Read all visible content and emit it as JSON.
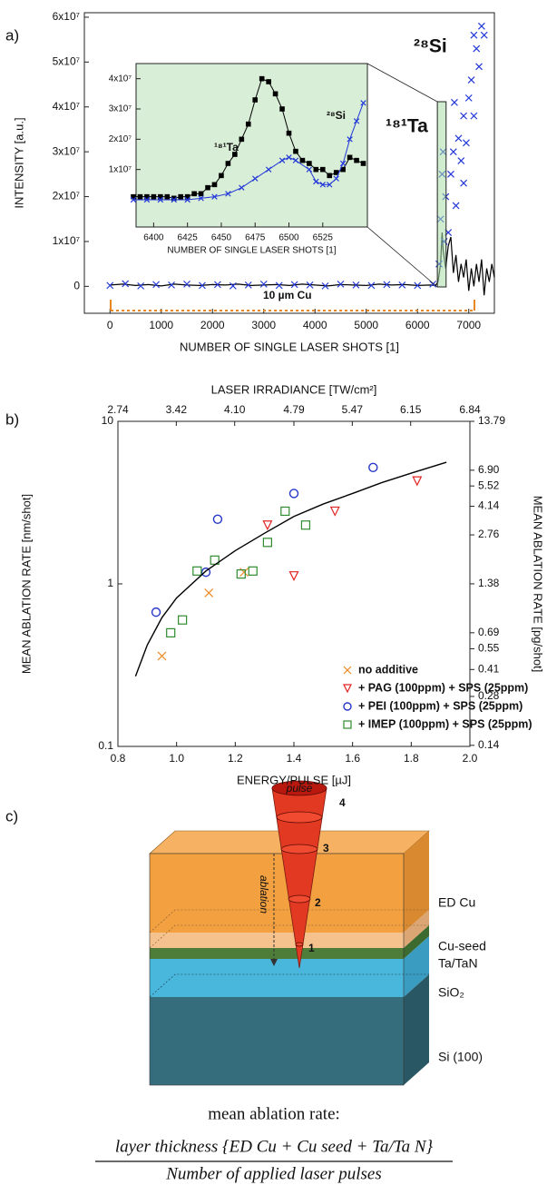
{
  "panel_labels": [
    "a)",
    "b)",
    "c)"
  ],
  "chart_data": [
    {
      "type": "line",
      "x_label": "NUMBER OF SINGLE LASER SHOTS [1]",
      "y_label": "INTENSITY [a.u.]",
      "xlim": [
        -500,
        7500
      ],
      "ylim": [
        -6000000,
        61000000
      ],
      "xticks": [
        0,
        1000,
        2000,
        3000,
        4000,
        5000,
        6000,
        7000
      ],
      "yticks": [
        0,
        {
          "value": 10000000,
          "label": "1x10⁷"
        },
        {
          "value": 20000000,
          "label": "2x10⁷"
        },
        {
          "value": 30000000,
          "label": "3x10⁷"
        },
        {
          "value": 40000000,
          "label": "4x10⁷"
        },
        {
          "value": 50000000,
          "label": "5x10⁷"
        },
        {
          "value": 60000000,
          "label": "6x10⁷"
        }
      ],
      "annotations": [
        "²⁸Si",
        "¹⁸¹Ta",
        "10 µm Cu"
      ],
      "series": [
        {
          "color": "#000000",
          "line": true,
          "marker": "none",
          "x": [
            0,
            250,
            500,
            750,
            1000,
            1250,
            1500,
            1750,
            2000,
            2250,
            2500,
            2750,
            3000,
            3250,
            3500,
            3750,
            4000,
            4250,
            4500,
            4750,
            5000,
            5250,
            5500,
            5750,
            6000,
            6250,
            6350,
            6400,
            6450,
            6480,
            6500,
            6550,
            6600,
            6650,
            6700,
            6750,
            6800,
            6850,
            6900,
            6950,
            7000,
            7050,
            7100,
            7150,
            7200,
            7250,
            7300,
            7350,
            7400,
            7450,
            7500
          ],
          "values": [
            300000,
            500000,
            200000,
            400000,
            100000,
            500000,
            300000,
            200000,
            400000,
            300000,
            500000,
            200000,
            300000,
            400000,
            200000,
            500000,
            300000,
            100000,
            400000,
            300000,
            200000,
            500000,
            300000,
            400000,
            200000,
            300000,
            200000,
            1000000,
            5000000,
            12000000,
            8000000,
            4000000,
            9000000,
            11000000,
            3000000,
            7000000,
            1000000,
            5000000,
            2000000,
            6000000,
            -1000000,
            4000000,
            0,
            5000000,
            1000000,
            6000000,
            -2000000,
            4000000,
            1000000,
            5000000,
            2000000
          ]
        },
        {
          "color": "#2338d8",
          "line": false,
          "marker": "x",
          "x": [
            0,
            300,
            600,
            900,
            1200,
            1500,
            1800,
            2100,
            2400,
            2700,
            3000,
            3300,
            3600,
            3900,
            4200,
            4500,
            4800,
            5100,
            5400,
            5700,
            6000,
            6300,
            6420,
            6450,
            6480,
            6500,
            6520,
            6550,
            6600,
            6650,
            6700,
            6720,
            6750,
            6800,
            6850,
            6900,
            6900,
            6950,
            7000,
            7050,
            7100,
            7100,
            7150,
            7200,
            7250,
            7300
          ],
          "values": [
            200000,
            600000,
            100000,
            400000,
            300000,
            500000,
            200000,
            400000,
            100000,
            300000,
            500000,
            200000,
            400000,
            300000,
            100000,
            500000,
            300000,
            200000,
            400000,
            300000,
            200000,
            500000,
            5000000,
            15000000,
            25000000,
            30000000,
            10000000,
            20000000,
            12000000,
            25000000,
            30000000,
            41000000,
            18000000,
            33000000,
            28000000,
            38000000,
            23000000,
            32000000,
            42000000,
            46000000,
            38000000,
            56000000,
            53000000,
            49000000,
            58000000,
            56000000
          ]
        }
      ]
    },
    {
      "type": "line",
      "x_label": "NUMBER OF SINGLE LASER SHOTS [1]",
      "xlim": [
        6387,
        6558
      ],
      "ylim": [
        -9000000,
        45000000
      ],
      "xticks": [
        6400,
        6425,
        6450,
        6475,
        6500,
        6525
      ],
      "yticks": [
        {
          "value": 10000000,
          "label": "1x10⁷"
        },
        {
          "value": 20000000,
          "label": "2x10⁷"
        },
        {
          "value": 30000000,
          "label": "3x10⁷"
        },
        {
          "value": 40000000,
          "label": "4x10⁷"
        }
      ],
      "annotations": [
        "¹⁸¹Ta",
        "²⁸Si"
      ],
      "series": [
        {
          "color": "#000000",
          "line": true,
          "marker": "square",
          "x": [
            6385,
            6390,
            6395,
            6400,
            6405,
            6410,
            6415,
            6420,
            6425,
            6430,
            6435,
            6440,
            6445,
            6450,
            6455,
            6460,
            6465,
            6470,
            6475,
            6480,
            6485,
            6490,
            6495,
            6500,
            6505,
            6510,
            6515,
            6520,
            6525,
            6530,
            6535,
            6540,
            6545,
            6550,
            6555
          ],
          "values": [
            1000000,
            1000000,
            1000000,
            1000000,
            1000000,
            1000000,
            500000,
            1000000,
            1000000,
            2000000,
            2000000,
            4000000,
            5000000,
            8000000,
            12000000,
            15000000,
            20000000,
            25000000,
            33000000,
            40000000,
            39000000,
            35000000,
            30000000,
            22000000,
            16000000,
            13000000,
            12000000,
            10000000,
            10000000,
            8000000,
            9000000,
            10000000,
            14000000,
            13000000,
            12000000
          ]
        },
        {
          "color": "#2338d8",
          "line": true,
          "marker": "x",
          "x": [
            6385,
            6395,
            6405,
            6415,
            6425,
            6435,
            6445,
            6455,
            6465,
            6475,
            6485,
            6495,
            6500,
            6505,
            6515,
            6520,
            6525,
            6530,
            6535,
            6540,
            6545,
            6550,
            6555
          ],
          "values": [
            0,
            0,
            0,
            0,
            0,
            500000,
            1000000,
            2000000,
            4000000,
            7000000,
            10000000,
            13000000,
            14000000,
            13000000,
            10000000,
            6000000,
            5000000,
            5000000,
            7000000,
            12000000,
            20000000,
            26000000,
            32000000
          ]
        }
      ]
    },
    {
      "type": "scatter",
      "x_label": "ENERGY/PULSE [µJ]",
      "x2_label": "LASER IRRADIANCE [TW/cm²]",
      "y_label": "MEAN ABLATION RATE [nm/shot]",
      "y2_label": "MEAN ABLATION RATE [pg/shot]",
      "xlim": [
        0.8,
        2.0
      ],
      "xticks": [
        0.8,
        {
          "value": 1.0,
          "label": "1.0"
        },
        1.2,
        1.4,
        1.6,
        1.8,
        {
          "value": 2.0,
          "label": "2.0"
        }
      ],
      "x2lim": [
        2.74,
        6.84
      ],
      "x2ticks": [
        2.74,
        3.42,
        {
          "value": 4.1,
          "label": "4.10"
        },
        4.79,
        5.47,
        6.15,
        6.84
      ],
      "ylim": [
        0.1,
        10
      ],
      "yticks": [
        0.1,
        1,
        10
      ],
      "y_log": true,
      "y2lim": [
        0.1379,
        13.79
      ],
      "y2ticks": [
        13.79,
        {
          "value": 6.9,
          "label": "6.90"
        },
        5.52,
        4.14,
        2.76,
        1.38,
        0.69,
        0.55,
        0.41,
        0.28,
        0.14
      ],
      "y2_log": true,
      "legend": "lower right",
      "series": [
        {
          "name": "no additive",
          "color": "#f08a24",
          "line": false,
          "marker": "x",
          "x": [
            0.95,
            1.11,
            1.23
          ],
          "values": [
            0.36,
            0.88,
            1.18
          ]
        },
        {
          "name": "+ PAG (100ppm) + SPS (25ppm)",
          "color": "#e32222",
          "line": false,
          "marker": "triangle-down-open",
          "x": [
            1.31,
            1.4,
            1.54,
            1.82
          ],
          "values": [
            2.3,
            1.12,
            2.8,
            4.3
          ]
        },
        {
          "name": "+ PEI (100ppm) + SPS (25ppm)",
          "color": "#2636c8",
          "line": false,
          "marker": "circle-open",
          "x": [
            0.93,
            1.1,
            1.14,
            1.4,
            1.67
          ],
          "values": [
            0.67,
            1.18,
            2.5,
            3.6,
            5.2
          ]
        },
        {
          "name": "+ IMEP (100ppm) + SPS (25ppm)",
          "color": "#2e8b2e",
          "line": false,
          "marker": "square-open",
          "x": [
            0.98,
            1.02,
            1.07,
            1.13,
            1.22,
            1.26,
            1.31,
            1.37,
            1.44
          ],
          "values": [
            0.5,
            0.6,
            1.2,
            1.4,
            1.15,
            1.2,
            1.8,
            2.8,
            2.3
          ]
        },
        {
          "color": "#000000",
          "line": true,
          "marker": "none",
          "x": [
            0.86,
            0.9,
            0.95,
            1.0,
            1.1,
            1.2,
            1.3,
            1.4,
            1.5,
            1.6,
            1.7,
            1.8,
            1.92
          ],
          "values": [
            0.27,
            0.42,
            0.62,
            0.82,
            1.2,
            1.6,
            2.05,
            2.6,
            3.1,
            3.6,
            4.2,
            4.8,
            5.6
          ]
        }
      ]
    }
  ],
  "diagram": {
    "layers": [
      "ED Cu",
      "Cu-seed",
      "Ta/TaN",
      "SiO₂",
      "Si (100)"
    ],
    "pulse_label": "pulse",
    "pulse_numbers": [
      "4",
      "3",
      "2",
      "1"
    ],
    "ablation_label": "ablation",
    "caption": "mean ablation rate:",
    "numerator": "layer thickness {ED Cu + Cu seed + Ta/Ta N}",
    "denominator": "Number of applied laser pulses"
  }
}
